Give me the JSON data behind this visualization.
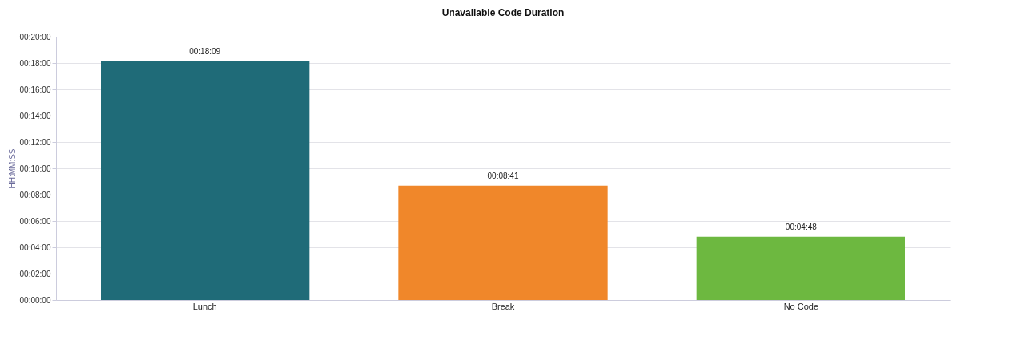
{
  "chart_data": {
    "type": "bar",
    "title": "Unavailable Code Duration",
    "ylabel": "HH:MM:SS",
    "categories": [
      "Lunch",
      "Break",
      "No Code"
    ],
    "values": [
      18.15,
      8.6833,
      4.8
    ],
    "colors": [
      "#1f6b78",
      "#f0872a",
      "#6db840"
    ],
    "value_labels": [
      "00:18:09",
      "00:08:41",
      "00:04:48"
    ],
    "ylim": [
      0,
      20
    ],
    "yticks": [
      {
        "value": 0,
        "label": "00:00:00"
      },
      {
        "value": 2,
        "label": "00:02:00"
      },
      {
        "value": 4,
        "label": "00:04:00"
      },
      {
        "value": 6,
        "label": "00:06:00"
      },
      {
        "value": 8,
        "label": "00:08:00"
      },
      {
        "value": 10,
        "label": "00:10:00"
      },
      {
        "value": 12,
        "label": "00:12:00"
      },
      {
        "value": 14,
        "label": "00:14:00"
      },
      {
        "value": 16,
        "label": "00:16:00"
      },
      {
        "value": 18,
        "label": "00:18:00"
      },
      {
        "value": 20,
        "label": "00:20:00"
      }
    ],
    "grid": "y",
    "legend": false
  }
}
